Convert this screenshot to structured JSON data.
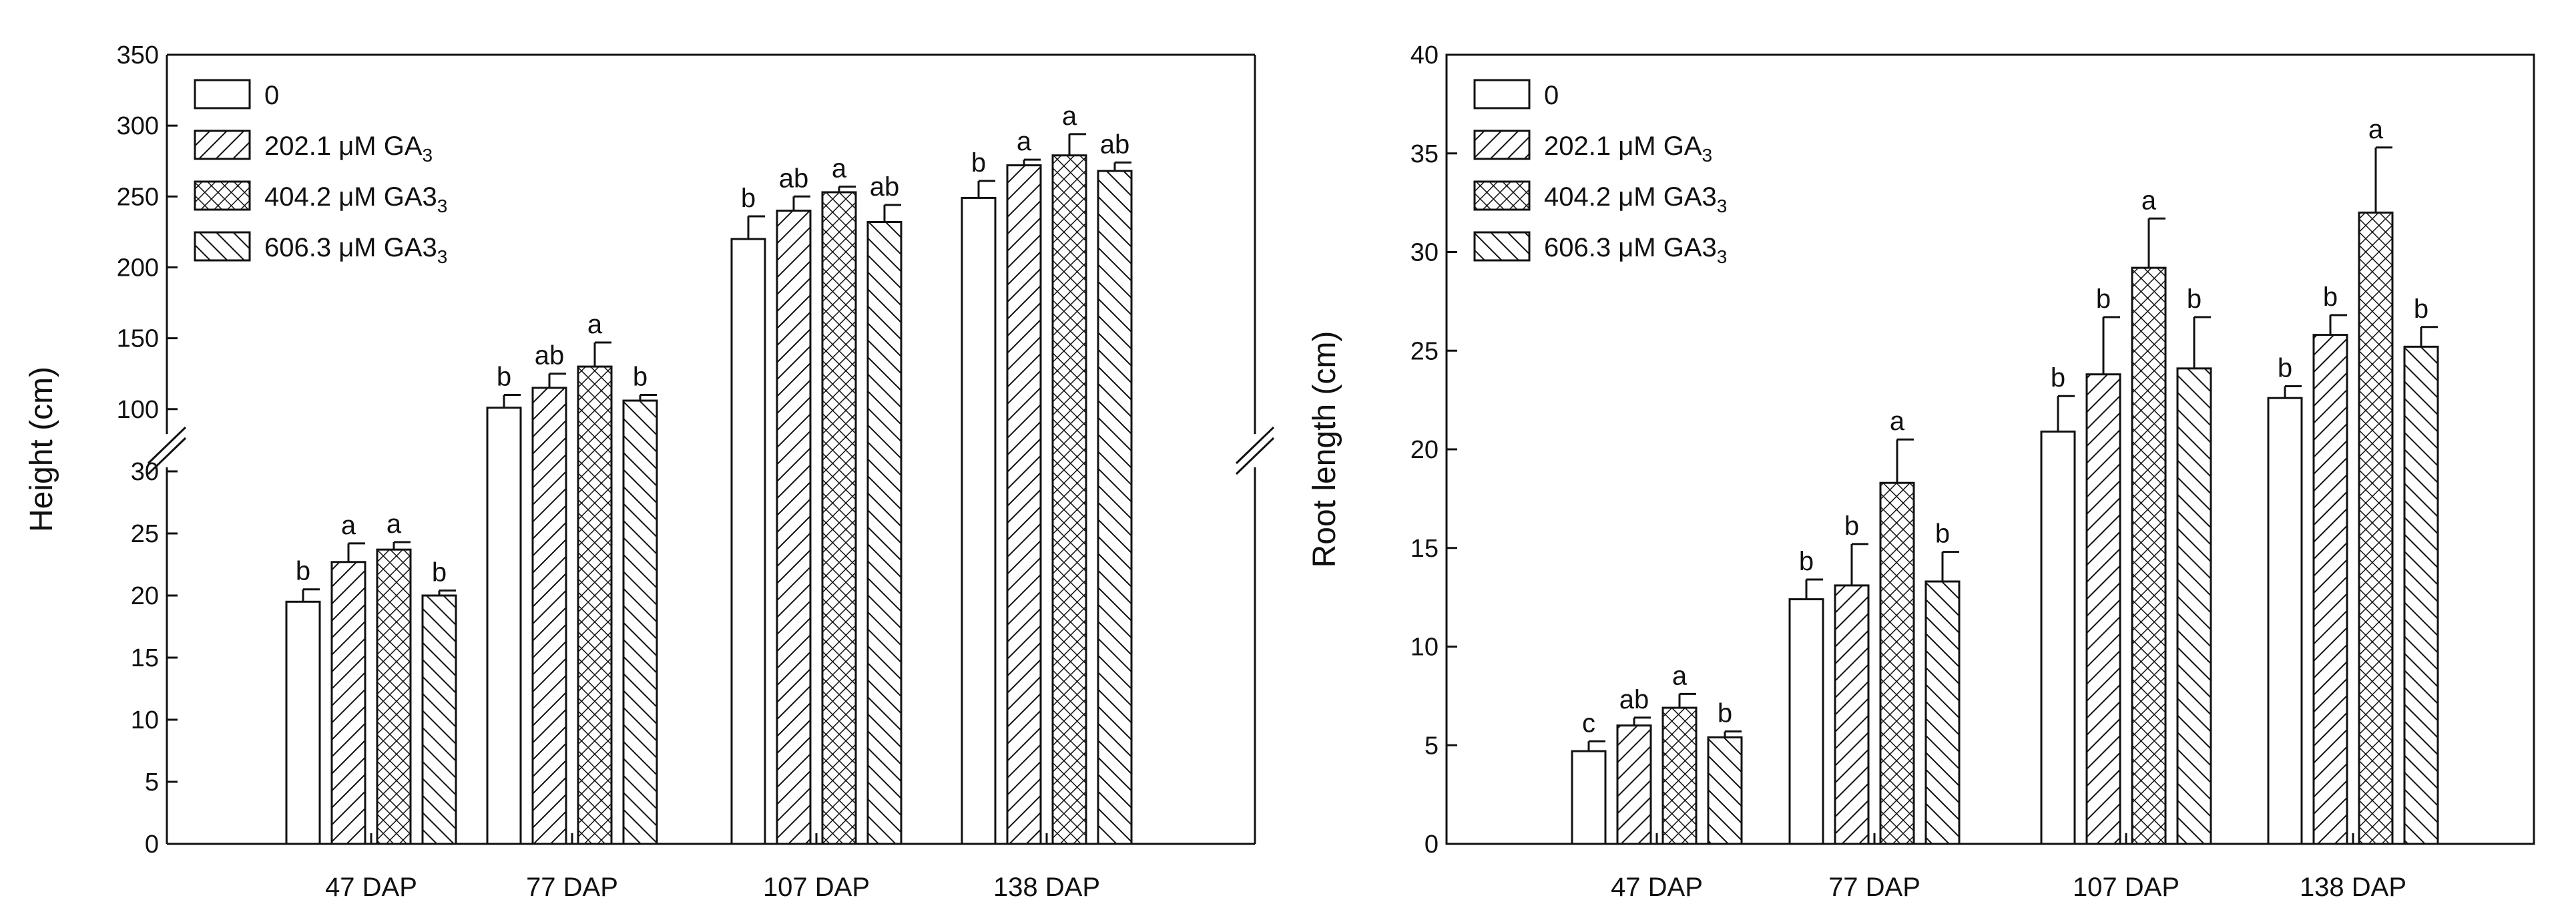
{
  "chart_data": [
    {
      "type": "bar",
      "panel": "left",
      "ylabel": "Height (cm)",
      "xlabel": "",
      "categories": [
        "47 DAP",
        "77 DAP",
        "107 DAP",
        "138 DAP"
      ],
      "y_break": {
        "lower": [
          0,
          30
        ],
        "upper": [
          90,
          350
        ]
      },
      "yticks_lower": [
        "0",
        "5",
        "10",
        "15",
        "20",
        "25",
        "30"
      ],
      "yticks_upper": [
        "100",
        "150",
        "200",
        "250",
        "300",
        "350"
      ],
      "series": [
        {
          "name": "0",
          "pattern": "none",
          "values": [
            19.5,
            101,
            220,
            249
          ],
          "errors": [
            1.0,
            9,
            16,
            12
          ],
          "letters": [
            "b",
            "b",
            "b",
            "b"
          ]
        },
        {
          "name": "202.1 μM GA3",
          "pattern": "diag-right",
          "values": [
            22.7,
            115,
            240,
            272
          ],
          "errors": [
            1.5,
            10,
            10,
            4
          ],
          "letters": [
            "a",
            "ab",
            "ab",
            "a"
          ]
        },
        {
          "name": "404.2 μM GA33",
          "pattern": "crosshatch",
          "values": [
            23.7,
            130,
            253,
            279
          ],
          "errors": [
            0.6,
            17,
            4,
            15
          ],
          "letters": [
            "a",
            "a",
            "a",
            "a"
          ]
        },
        {
          "name": "606.3 μM GA33",
          "pattern": "diag-left",
          "values": [
            20.0,
            106,
            232,
            268
          ],
          "errors": [
            0.4,
            4,
            12,
            6
          ],
          "letters": [
            "b",
            "b",
            "ab",
            "ab"
          ]
        }
      ],
      "legend": {
        "placement": "top-left",
        "entries": [
          {
            "pre": "0",
            "sub": ""
          },
          {
            "pre": "202.1 μM GA",
            "sub": "3"
          },
          {
            "pre": "404.2 μM GA3",
            "sub": "3"
          },
          {
            "pre": "606.3 μM GA3",
            "sub": "3"
          }
        ]
      }
    },
    {
      "type": "bar",
      "panel": "right",
      "ylabel": "Root length (cm)",
      "xlabel": "",
      "categories": [
        "47 DAP",
        "77 DAP",
        "107 DAP",
        "138 DAP"
      ],
      "ylim": [
        0,
        40
      ],
      "yticks": [
        "0",
        "5",
        "10",
        "15",
        "20",
        "25",
        "30",
        "35",
        "40"
      ],
      "series": [
        {
          "name": "0",
          "pattern": "none",
          "values": [
            4.7,
            12.4,
            20.9,
            22.6
          ],
          "errors": [
            0.5,
            1.0,
            1.8,
            0.6
          ],
          "letters": [
            "c",
            "b",
            "b",
            "b"
          ]
        },
        {
          "name": "202.1 μM GA3",
          "pattern": "diag-right",
          "values": [
            6.0,
            13.1,
            23.8,
            25.8
          ],
          "errors": [
            0.4,
            2.1,
            2.9,
            1.0
          ],
          "letters": [
            "ab",
            "b",
            "b",
            "b"
          ]
        },
        {
          "name": "404.2 μM GA33",
          "pattern": "crosshatch",
          "values": [
            6.9,
            18.3,
            29.2,
            32.0
          ],
          "errors": [
            0.7,
            2.2,
            2.5,
            3.3
          ],
          "letters": [
            "a",
            "a",
            "a",
            "a"
          ]
        },
        {
          "name": "606.3 μM GA33",
          "pattern": "diag-left",
          "values": [
            5.4,
            13.3,
            24.1,
            25.2
          ],
          "errors": [
            0.3,
            1.5,
            2.6,
            1.0
          ],
          "letters": [
            "b",
            "b",
            "b",
            "b"
          ]
        }
      ],
      "legend": {
        "placement": "top-left",
        "entries": [
          {
            "pre": "0",
            "sub": ""
          },
          {
            "pre": "202.1 μM GA",
            "sub": "3"
          },
          {
            "pre": "404.2 μM GA3",
            "sub": "3"
          },
          {
            "pre": "606.3 μM GA3",
            "sub": "3"
          }
        ]
      }
    }
  ]
}
